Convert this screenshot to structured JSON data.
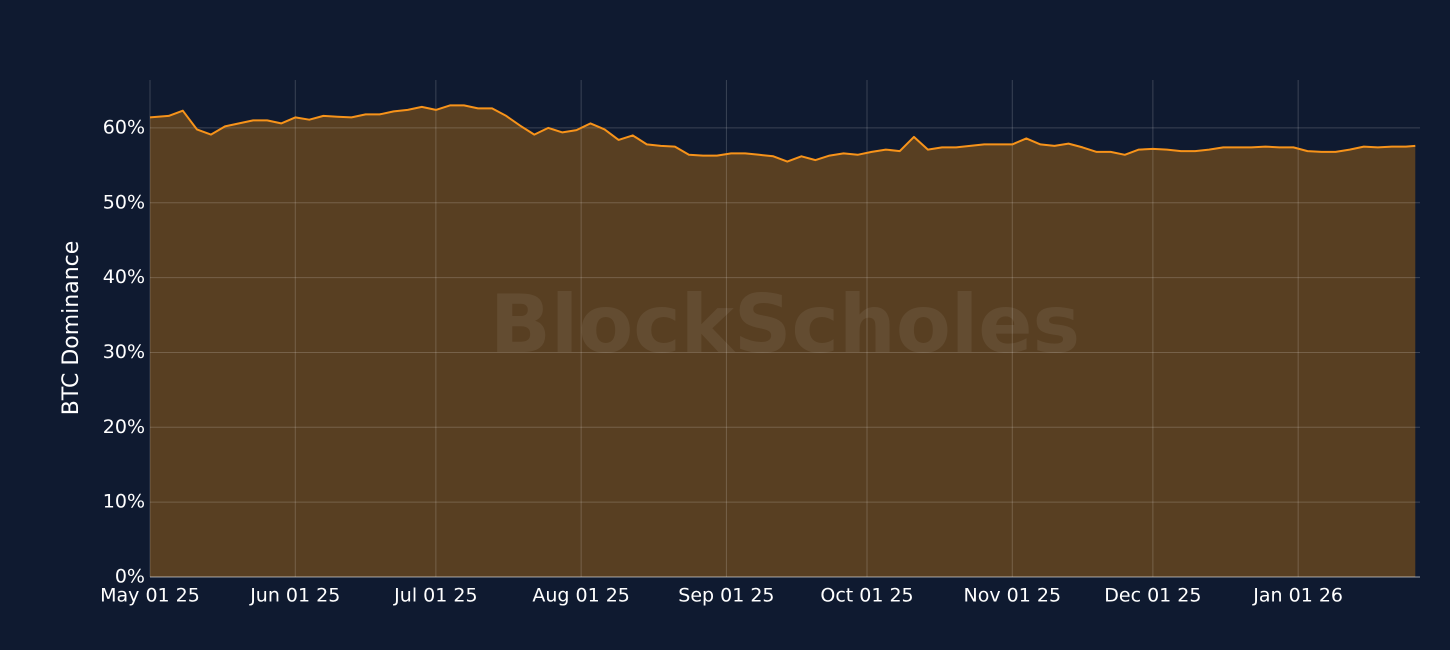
{
  "chart_data": {
    "type": "area",
    "y_label": "BTC Dominance",
    "watermark": "BlockScholes",
    "color": "#f7931a",
    "fill_color": "#583f22",
    "grid": true,
    "xlim": [
      "2025-05-01",
      "2026-01-27"
    ],
    "ylim": [
      0,
      66.4
    ],
    "xticks": [
      {
        "value": "2025-05-01",
        "label": "May 01 25"
      },
      {
        "value": "2025-06-01",
        "label": "Jun 01 25"
      },
      {
        "value": "2025-07-01",
        "label": "Jul 01 25"
      },
      {
        "value": "2025-08-01",
        "label": "Aug 01 25"
      },
      {
        "value": "2025-09-01",
        "label": "Sep 01 25"
      },
      {
        "value": "2025-10-01",
        "label": "Oct 01 25"
      },
      {
        "value": "2025-11-01",
        "label": "Nov 01 25"
      },
      {
        "value": "2025-12-01",
        "label": "Dec 01 25"
      },
      {
        "value": "2026-01-01",
        "label": "Jan 01 26"
      }
    ],
    "yticks": [
      {
        "value": 0,
        "label": "0%"
      },
      {
        "value": 10,
        "label": "10%"
      },
      {
        "value": 20,
        "label": "20%"
      },
      {
        "value": 30,
        "label": "30%"
      },
      {
        "value": 40,
        "label": "40%"
      },
      {
        "value": 50,
        "label": "50%"
      },
      {
        "value": 60,
        "label": "60%"
      }
    ],
    "x": [
      "2025-05-01",
      "2025-05-05",
      "2025-05-08",
      "2025-05-11",
      "2025-05-14",
      "2025-05-17",
      "2025-05-20",
      "2025-05-23",
      "2025-05-26",
      "2025-05-29",
      "2025-06-01",
      "2025-06-04",
      "2025-06-07",
      "2025-06-10",
      "2025-06-13",
      "2025-06-16",
      "2025-06-19",
      "2025-06-22",
      "2025-06-25",
      "2025-06-28",
      "2025-07-01",
      "2025-07-04",
      "2025-07-07",
      "2025-07-10",
      "2025-07-13",
      "2025-07-16",
      "2025-07-19",
      "2025-07-22",
      "2025-07-25",
      "2025-07-28",
      "2025-07-31",
      "2025-08-03",
      "2025-08-06",
      "2025-08-09",
      "2025-08-12",
      "2025-08-15",
      "2025-08-18",
      "2025-08-21",
      "2025-08-24",
      "2025-08-27",
      "2025-08-30",
      "2025-09-02",
      "2025-09-05",
      "2025-09-08",
      "2025-09-11",
      "2025-09-14",
      "2025-09-17",
      "2025-09-20",
      "2025-09-23",
      "2025-09-26",
      "2025-09-29",
      "2025-10-02",
      "2025-10-05",
      "2025-10-08",
      "2025-10-11",
      "2025-10-14",
      "2025-10-17",
      "2025-10-20",
      "2025-10-23",
      "2025-10-26",
      "2025-10-29",
      "2025-11-01",
      "2025-11-04",
      "2025-11-07",
      "2025-11-10",
      "2025-11-13",
      "2025-11-16",
      "2025-11-19",
      "2025-11-22",
      "2025-11-25",
      "2025-11-28",
      "2025-12-01",
      "2025-12-04",
      "2025-12-07",
      "2025-12-10",
      "2025-12-13",
      "2025-12-16",
      "2025-12-19",
      "2025-12-22",
      "2025-12-25",
      "2025-12-28",
      "2025-12-31",
      "2026-01-03",
      "2026-01-06",
      "2026-01-09",
      "2026-01-12",
      "2026-01-15",
      "2026-01-18",
      "2026-01-21",
      "2026-01-24",
      "2026-01-26"
    ],
    "values": [
      61.4,
      61.6,
      62.3,
      59.8,
      59.1,
      60.2,
      60.6,
      61.0,
      61.0,
      60.6,
      61.4,
      61.1,
      61.6,
      61.5,
      61.4,
      61.8,
      61.8,
      62.2,
      62.4,
      62.8,
      62.4,
      63.0,
      63.0,
      62.6,
      62.6,
      61.6,
      60.3,
      59.1,
      60.0,
      59.4,
      59.7,
      60.6,
      59.8,
      58.4,
      59.0,
      57.8,
      57.6,
      57.5,
      56.4,
      56.3,
      56.3,
      56.6,
      56.6,
      56.4,
      56.2,
      55.5,
      56.2,
      55.7,
      56.3,
      56.6,
      56.4,
      56.8,
      57.1,
      56.9,
      58.8,
      57.1,
      57.4,
      57.4,
      57.6,
      57.8,
      57.8,
      57.8,
      58.6,
      57.8,
      57.6,
      57.9,
      57.4,
      56.8,
      56.8,
      56.4,
      57.1,
      57.2,
      57.1,
      56.9,
      56.9,
      57.1,
      57.4,
      57.4,
      57.4,
      57.5,
      57.4,
      57.4,
      56.9,
      56.8,
      56.8,
      57.1,
      57.5,
      57.4,
      57.5,
      57.5,
      57.6
    ]
  }
}
